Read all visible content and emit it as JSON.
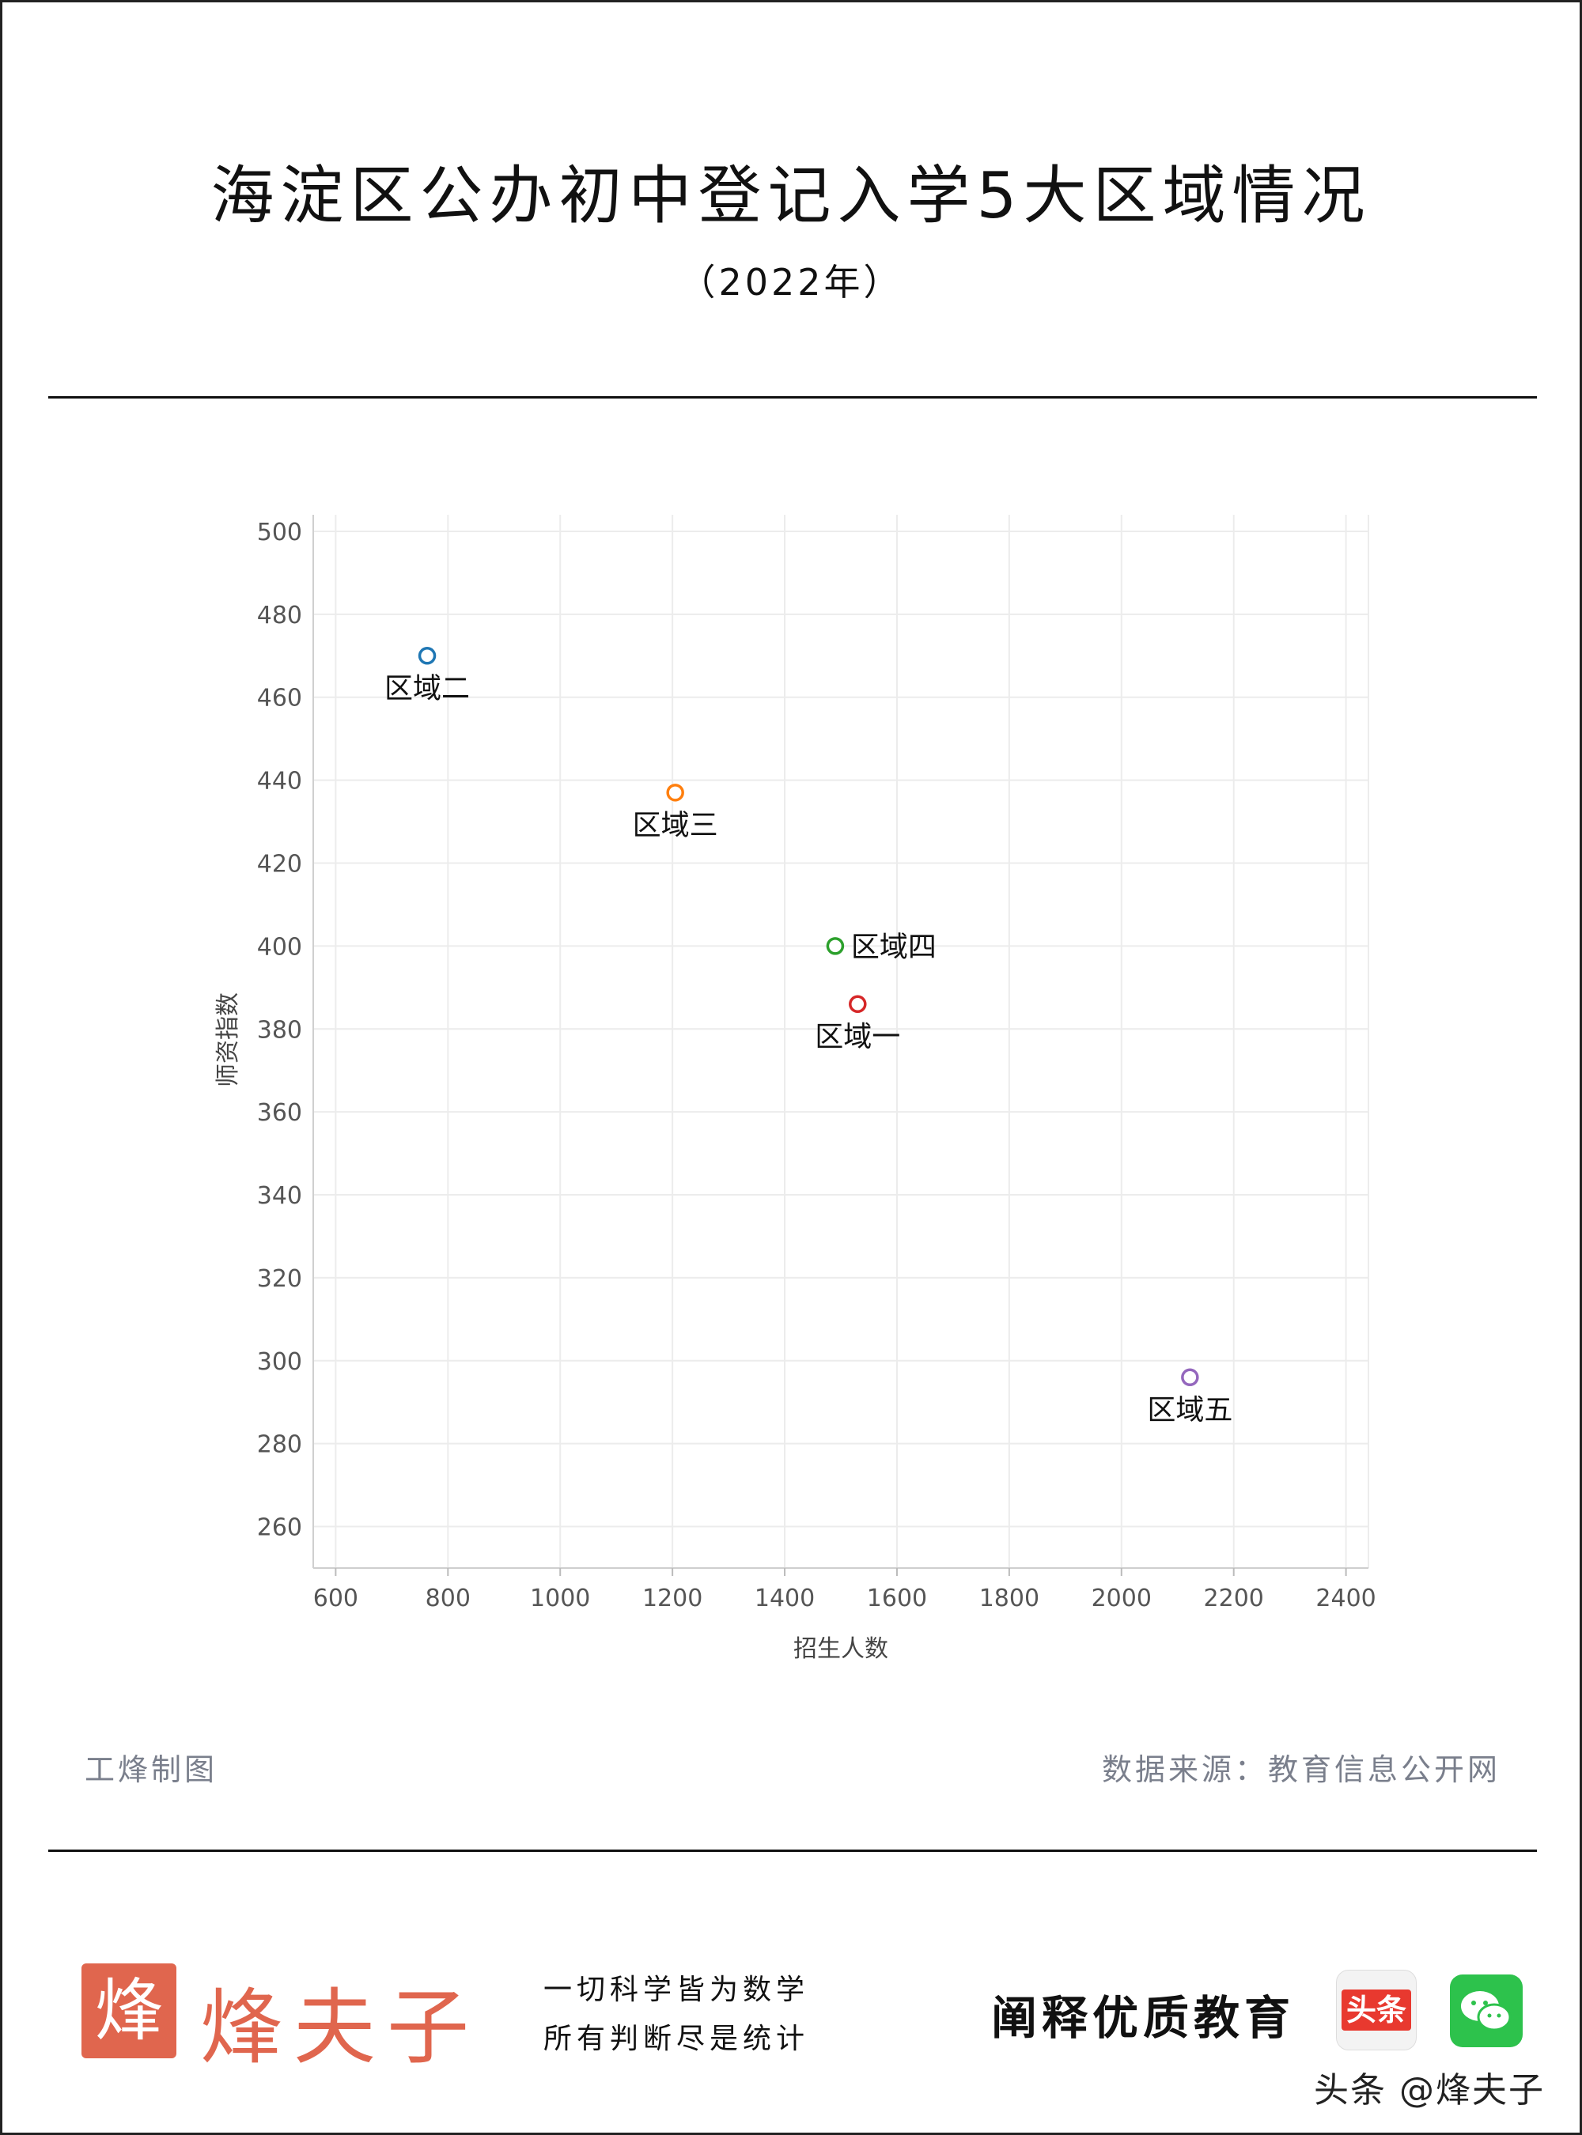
{
  "header": {
    "title": "海淀区公办初中登记入学5大区域情况",
    "subtitle": "（2022年）"
  },
  "footer": {
    "maker": "工烽制图",
    "source": "数据来源：教育信息公开网"
  },
  "brand": {
    "logo_char": "烽",
    "name": "烽夫子",
    "slogan_line1": "一切科学皆为数学",
    "slogan_line2": "所有判断尽是统计",
    "tagline": "阐释优质教育",
    "toutiao_label": "头条",
    "watermark": "头条 @烽夫子",
    "brand_color": "#e0664e"
  },
  "icons": {
    "toutiao": "toutiao-icon",
    "wechat": "wechat-icon"
  },
  "chart_data": {
    "type": "scatter",
    "title": "",
    "xlabel": "招生人数",
    "ylabel": "师资指数",
    "xlim": [
      560,
      2440
    ],
    "ylim": [
      250,
      504
    ],
    "xticks": [
      600,
      800,
      1000,
      1200,
      1400,
      1600,
      1800,
      2000,
      2200,
      2400
    ],
    "yticks": [
      260,
      280,
      300,
      320,
      340,
      360,
      380,
      400,
      420,
      440,
      460,
      480,
      500
    ],
    "grid": true,
    "points": [
      {
        "label": "区域二",
        "x": 763,
        "y": 470,
        "color": "#1f77b4"
      },
      {
        "label": "区域三",
        "x": 1205,
        "y": 437,
        "color": "#ff7f0e"
      },
      {
        "label": "区域四",
        "x": 1490,
        "y": 400,
        "color": "#2ca02c"
      },
      {
        "label": "区域一",
        "x": 1530,
        "y": 386,
        "color": "#d62728"
      },
      {
        "label": "区域五",
        "x": 2122,
        "y": 296,
        "color": "#9467bd"
      }
    ]
  }
}
